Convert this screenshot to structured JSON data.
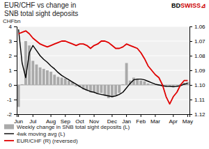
{
  "chart_data": {
    "type": "bar",
    "title": "EUR/CHF vs change in\nSNB total sight deposits",
    "y_label": "CHFbn",
    "annotations": [
      {
        "text": "BD",
        "color": "#000000"
      },
      {
        "text": "SWISS",
        "color": "#cc0000"
      },
      {
        "text": "⊿",
        "color": "#cc0000"
      }
    ],
    "categories": [
      "Jun",
      null,
      null,
      null,
      "Jul",
      null,
      null,
      null,
      null,
      "Aug",
      null,
      null,
      null,
      "Sep",
      null,
      null,
      null,
      "Oct",
      null,
      null,
      null,
      "Nov",
      null,
      null,
      null,
      null,
      "Dec",
      null,
      null,
      null,
      "Jan",
      null,
      null,
      null,
      "Feb",
      null,
      null,
      null,
      "Mar",
      null,
      null,
      null,
      null,
      "Apr",
      null,
      null,
      null,
      "May"
    ],
    "ylim": [
      -2,
      4
    ],
    "yticks": [
      -2,
      -1,
      0,
      1,
      2,
      3,
      4
    ],
    "y2lim": [
      1.12,
      1.06
    ],
    "y2ticks": [
      1.06,
      1.07,
      1.08,
      1.09,
      {
        "value": 1.1,
        "label": "1.10"
      },
      1.11,
      1.12
    ],
    "grid": true,
    "legend": "bottom",
    "series": [
      {
        "name": "Weekly change in SNB total sight deposits (L)",
        "type": "bar",
        "color": "#aaaaaa",
        "values": [
          -1.5,
          0.05,
          3.0,
          2.7,
          1.65,
          1.4,
          1.2,
          1.1,
          1.0,
          0.9,
          0.7,
          0.55,
          0.5,
          0.45,
          0.3,
          0.2,
          -0.1,
          -0.15,
          -0.3,
          -0.4,
          -0.5,
          -0.5,
          -0.6,
          -0.55,
          -0.7,
          -0.9,
          -0.85,
          -0.7,
          -0.55,
          0.05,
          1.5,
          0.3,
          0.5,
          0.4,
          0.3,
          0.25,
          0.1,
          0.05,
          0.0,
          -0.05,
          -0.1,
          -0.1,
          -0.1,
          -0.15,
          -0.1,
          0.05,
          0.15,
          0.2
        ]
      },
      {
        "name": "4wk moving avg (L)",
        "type": "line",
        "color": "#000000",
        "values": [
          3.8,
          1.5,
          0.5,
          2.2,
          2.7,
          2.35,
          2.0,
          1.75,
          1.55,
          1.3,
          1.1,
          0.85,
          0.65,
          0.5,
          0.35,
          0.2,
          0.05,
          -0.1,
          -0.25,
          -0.35,
          -0.45,
          -0.5,
          -0.6,
          -0.65,
          -0.7,
          -0.75,
          -0.8,
          -0.75,
          -0.65,
          -0.5,
          -0.2,
          0.1,
          0.35,
          0.4,
          0.4,
          0.35,
          0.25,
          0.15,
          0.05,
          0.0,
          -0.05,
          -0.1,
          -0.1,
          -0.12,
          -0.1,
          -0.05,
          0.05,
          0.1
        ]
      },
      {
        "name": "EUR/CHF (R) (reversed)",
        "type": "line",
        "color": "#e00000",
        "axis": "y2",
        "values": [
          1.065,
          1.064,
          1.063,
          1.065,
          1.068,
          1.07,
          1.072,
          1.073,
          1.074,
          1.073,
          1.072,
          1.071,
          1.07,
          1.07,
          1.071,
          1.072,
          1.073,
          1.072,
          1.072,
          1.073,
          1.075,
          1.073,
          1.072,
          1.07,
          1.07,
          1.071,
          1.073,
          1.075,
          1.075,
          1.074,
          1.072,
          1.073,
          1.074,
          1.075,
          1.078,
          1.082,
          1.087,
          1.09,
          1.093,
          1.095,
          1.1,
          1.108,
          1.113,
          1.108,
          1.105,
          1.1,
          1.097,
          1.097
        ]
      }
    ]
  }
}
